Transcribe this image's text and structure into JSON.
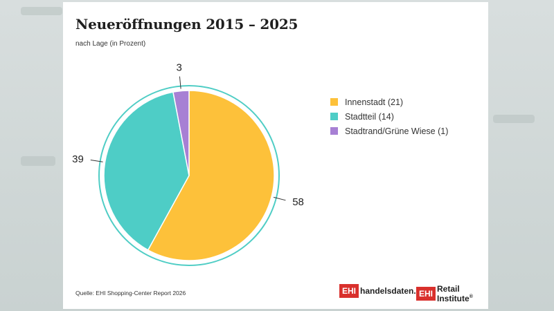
{
  "title": "Neueröffnungen 2015 – 2025",
  "subtitle": "nach Lage (in Prozent)",
  "source": "Quelle: EHI Shopping-Center Report 2026",
  "logos": {
    "logo1_mark": "EHI",
    "logo1_text": "handelsdaten.de",
    "logo2_mark": "EHI",
    "logo2_text": "Retail Institute",
    "logo2_reg": "®"
  },
  "colors": {
    "accent": "#4fcdc5",
    "brand_red": "#d9302c"
  },
  "chart_data": {
    "type": "pie",
    "title": "Neueröffnungen 2015 – 2025",
    "subtitle": "nach Lage (in Prozent)",
    "legend_position": "right",
    "slices": [
      {
        "legend": "Innenstadt (21)",
        "value": 58,
        "label": "58",
        "color": "#fdc13a"
      },
      {
        "legend": "Stadtteil (14)",
        "value": 39,
        "label": "39",
        "color": "#4ecdc6"
      },
      {
        "legend": "Stadtrand/Grüne Wiese (1)",
        "value": 3,
        "label": "3",
        "color": "#a780d4"
      }
    ]
  }
}
